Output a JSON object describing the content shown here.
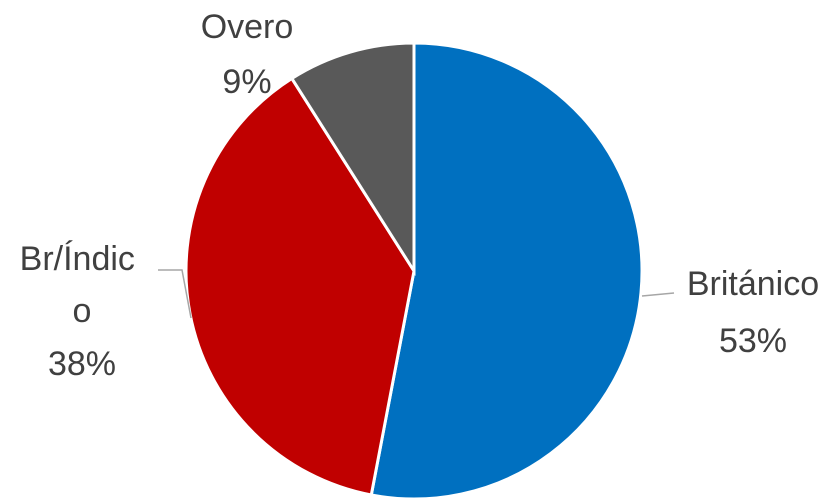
{
  "chart_data": {
    "type": "pie",
    "start_angle_deg": 0,
    "direction": "clockwise",
    "slices": [
      {
        "name": "Británico",
        "value": 53,
        "label": "53%",
        "color": "#0070C0"
      },
      {
        "name": "Br/Índico",
        "value": 38,
        "label": "38%",
        "color": "#C00000"
      },
      {
        "name": "Overo",
        "value": 9,
        "label": "9%",
        "color": "#595959"
      }
    ]
  }
}
